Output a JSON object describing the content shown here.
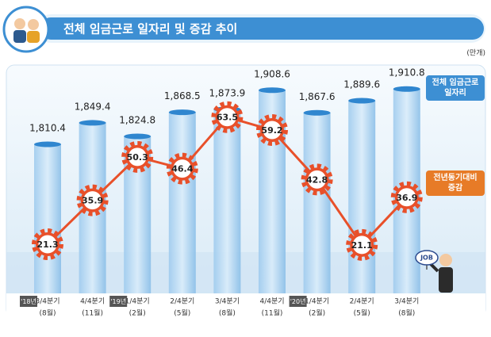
{
  "chart_data": {
    "type": "bar",
    "title": "전체 임금근로 일자리 및 증감 추이",
    "unit_label": "(만개)",
    "annotations": [
      "JOB"
    ],
    "categories": [
      "3/4분기",
      "4/4분기",
      "1/4분기",
      "2/4분기",
      "3/4분기",
      "4/4분기",
      "1/4분기",
      "2/4분기",
      "3/4분기"
    ],
    "sub_categories": [
      "(8월)",
      "(11월)",
      "(2월)",
      "(5월)",
      "(8월)",
      "(11월)",
      "(2월)",
      "(5월)",
      "(8월)"
    ],
    "year_labels": [
      "'18년",
      null,
      "'19년",
      null,
      null,
      null,
      "'20년",
      null,
      null
    ],
    "ylim": [
      1540,
      1950
    ],
    "y2lim": [
      5,
      80
    ],
    "series": [
      {
        "name": "전체 임금근로 일자리",
        "color": "#5aa7de",
        "values": [
          1810.4,
          1849.4,
          1824.8,
          1868.5,
          1873.9,
          1908.6,
          1867.6,
          1889.6,
          1910.8
        ],
        "value_labels": [
          "1,810.4",
          "1,849.4",
          "1,824.8",
          "1,868.5",
          "1,873.9",
          "1,908.6",
          "1,867.6",
          "1,889.6",
          "1,910.8"
        ]
      },
      {
        "name": "전년동기대비 증감",
        "color": "#e8502a",
        "type": "line",
        "axis": "y2",
        "values": [
          21.3,
          35.9,
          50.3,
          46.4,
          63.5,
          59.2,
          42.8,
          21.1,
          36.9
        ]
      }
    ]
  }
}
